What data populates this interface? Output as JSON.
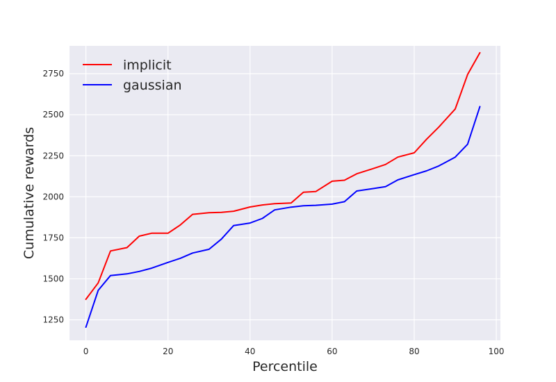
{
  "chart_data": {
    "type": "line",
    "xlabel": "Percentile",
    "ylabel": "Cumulative rewards",
    "xlim": [
      -4,
      101
    ],
    "ylim": [
      1125,
      2920
    ],
    "xticks": [
      0,
      20,
      40,
      60,
      80,
      100
    ],
    "yticks": [
      1250,
      1500,
      1750,
      2000,
      2250,
      2500,
      2750
    ],
    "grid": true,
    "legend": "top-left",
    "series": [
      {
        "name": "implicit",
        "color": "#ff0000",
        "x": [
          0,
          3,
          6,
          10,
          13,
          16,
          20,
          23,
          26,
          30,
          33,
          36,
          40,
          43,
          46,
          50,
          53,
          56,
          60,
          63,
          66,
          70,
          73,
          76,
          80,
          83,
          86,
          90,
          93,
          96
        ],
        "y": [
          1375,
          1475,
          1670,
          1690,
          1760,
          1778,
          1778,
          1828,
          1893,
          1903,
          1905,
          1912,
          1938,
          1950,
          1958,
          1962,
          2028,
          2032,
          2095,
          2101,
          2140,
          2172,
          2197,
          2242,
          2268,
          2350,
          2425,
          2535,
          2745,
          2878
        ]
      },
      {
        "name": "gaussian",
        "color": "#0000ff",
        "x": [
          0,
          3,
          6,
          10,
          13,
          16,
          20,
          23,
          26,
          30,
          33,
          36,
          40,
          43,
          46,
          50,
          53,
          56,
          60,
          63,
          66,
          70,
          73,
          76,
          80,
          83,
          86,
          90,
          93,
          96
        ],
        "y": [
          1205,
          1430,
          1520,
          1530,
          1545,
          1565,
          1600,
          1625,
          1657,
          1680,
          1742,
          1825,
          1840,
          1868,
          1920,
          1937,
          1945,
          1948,
          1955,
          1970,
          2035,
          2050,
          2062,
          2103,
          2135,
          2158,
          2188,
          2242,
          2320,
          2550
        ]
      }
    ]
  }
}
